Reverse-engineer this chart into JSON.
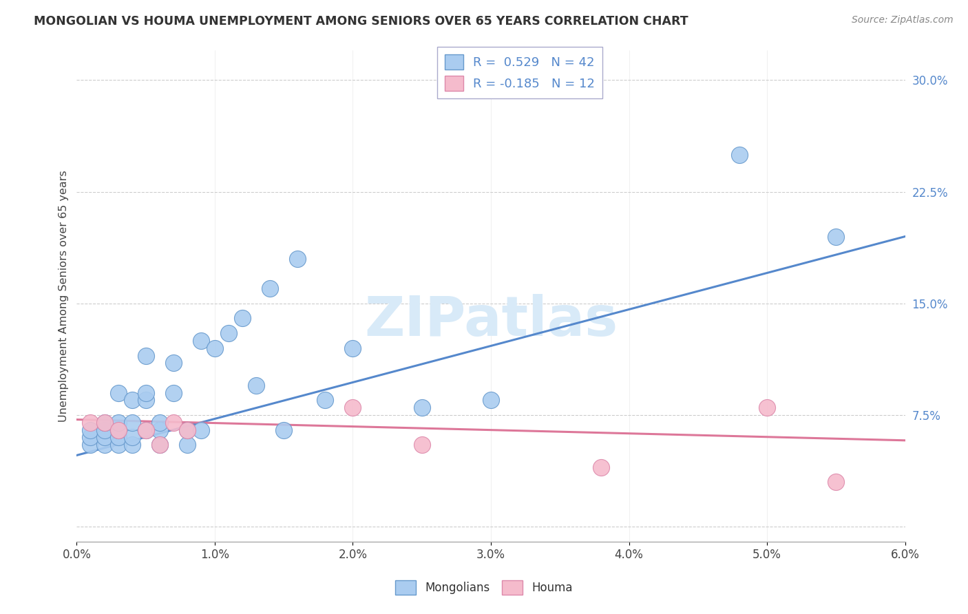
{
  "title": "MONGOLIAN VS HOUMA UNEMPLOYMENT AMONG SENIORS OVER 65 YEARS CORRELATION CHART",
  "source": "Source: ZipAtlas.com",
  "ylabel": "Unemployment Among Seniors over 65 years",
  "xlim": [
    0.0,
    0.06
  ],
  "ylim": [
    -0.01,
    0.32
  ],
  "xticks": [
    0.0,
    0.01,
    0.02,
    0.03,
    0.04,
    0.05,
    0.06
  ],
  "xticklabels": [
    "0.0%",
    "1.0%",
    "2.0%",
    "3.0%",
    "4.0%",
    "5.0%",
    "6.0%"
  ],
  "ytick_positions": [
    0.0,
    0.075,
    0.15,
    0.225,
    0.3
  ],
  "ytick_labels": [
    "",
    "7.5%",
    "15.0%",
    "22.5%",
    "30.0%"
  ],
  "mongolian_R": 0.529,
  "mongolian_N": 42,
  "houma_R": -0.185,
  "houma_N": 12,
  "mongolian_color": "#aaccf0",
  "mongolian_edge_color": "#6699cc",
  "mongolian_line_color": "#5588cc",
  "houma_color": "#f5bbcc",
  "houma_edge_color": "#dd88aa",
  "houma_line_color": "#dd7799",
  "watermark_color": "#d8eaf8",
  "background_color": "#ffffff",
  "grid_color": "#cccccc",
  "title_color": "#333333",
  "source_color": "#888888",
  "tick_color": "#5588cc",
  "mongolian_x": [
    0.001,
    0.001,
    0.001,
    0.002,
    0.002,
    0.002,
    0.002,
    0.003,
    0.003,
    0.003,
    0.003,
    0.003,
    0.004,
    0.004,
    0.004,
    0.004,
    0.005,
    0.005,
    0.005,
    0.005,
    0.006,
    0.006,
    0.006,
    0.007,
    0.007,
    0.008,
    0.008,
    0.009,
    0.009,
    0.01,
    0.011,
    0.012,
    0.013,
    0.014,
    0.015,
    0.016,
    0.018,
    0.02,
    0.025,
    0.03,
    0.048,
    0.055
  ],
  "mongolian_y": [
    0.055,
    0.06,
    0.065,
    0.055,
    0.06,
    0.065,
    0.07,
    0.055,
    0.06,
    0.065,
    0.07,
    0.09,
    0.055,
    0.06,
    0.07,
    0.085,
    0.065,
    0.085,
    0.09,
    0.115,
    0.055,
    0.065,
    0.07,
    0.09,
    0.11,
    0.055,
    0.065,
    0.065,
    0.125,
    0.12,
    0.13,
    0.14,
    0.095,
    0.16,
    0.065,
    0.18,
    0.085,
    0.12,
    0.08,
    0.085,
    0.25,
    0.195
  ],
  "houma_x": [
    0.001,
    0.002,
    0.003,
    0.005,
    0.006,
    0.007,
    0.008,
    0.02,
    0.025,
    0.038,
    0.05,
    0.055
  ],
  "houma_y": [
    0.07,
    0.07,
    0.065,
    0.065,
    0.055,
    0.07,
    0.065,
    0.08,
    0.055,
    0.04,
    0.08,
    0.03
  ],
  "mongo_trend_x0": 0.0,
  "mongo_trend_y0": 0.048,
  "mongo_trend_x1": 0.06,
  "mongo_trend_y1": 0.195,
  "houma_trend_x0": 0.0,
  "houma_trend_y0": 0.072,
  "houma_trend_x1": 0.06,
  "houma_trend_y1": 0.058
}
